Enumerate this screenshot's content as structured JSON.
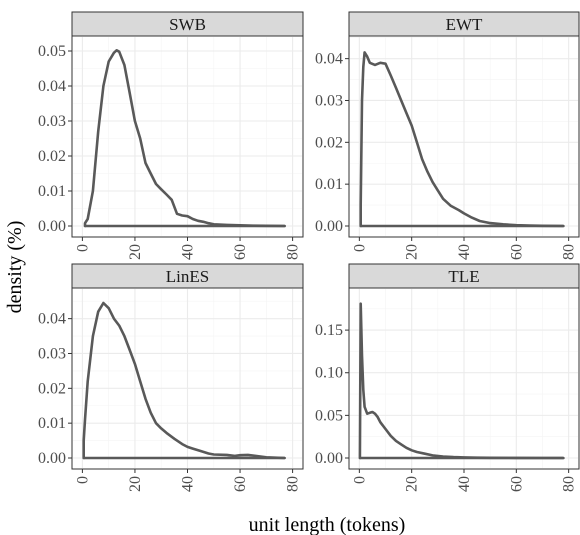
{
  "figure": {
    "ylabel": "density (%)",
    "xlabel": "unit length (tokens)"
  },
  "chart_data": [
    {
      "type": "line",
      "panel": "SWB",
      "title": "SWB",
      "xlim": [
        0,
        80
      ],
      "ylim": [
        0,
        0.052
      ],
      "x_ticks": [
        0,
        20,
        40,
        60,
        80
      ],
      "y_ticks": [
        0.0,
        0.01,
        0.02,
        0.03,
        0.04,
        0.05
      ],
      "y_tick_labels": [
        "0.00",
        "0.01",
        "0.02",
        "0.03",
        "0.04",
        "0.05"
      ],
      "series": [
        {
          "x": [
            1,
            2,
            4,
            6,
            8,
            10,
            12,
            13,
            14,
            16,
            18,
            20,
            22,
            24,
            26,
            28,
            30,
            32,
            34,
            36,
            38,
            40,
            42,
            44,
            46,
            48,
            50,
            55,
            60,
            65,
            70,
            77
          ],
          "y": [
            0.0008,
            0.002,
            0.01,
            0.027,
            0.04,
            0.047,
            0.0495,
            0.0502,
            0.0498,
            0.046,
            0.038,
            0.03,
            0.025,
            0.018,
            0.015,
            0.012,
            0.0105,
            0.009,
            0.0075,
            0.0035,
            0.003,
            0.0028,
            0.002,
            0.0015,
            0.0012,
            0.0008,
            0.0005,
            0.0003,
            0.0002,
            0.0001,
            5e-05,
            0.0
          ]
        }
      ]
    },
    {
      "type": "line",
      "panel": "EWT",
      "title": "EWT",
      "xlim": [
        0,
        80
      ],
      "ylim": [
        0,
        0.0435
      ],
      "x_ticks": [
        0,
        20,
        40,
        60,
        80
      ],
      "y_ticks": [
        0.0,
        0.01,
        0.02,
        0.03,
        0.04
      ],
      "y_tick_labels": [
        "0.00",
        "0.01",
        "0.02",
        "0.03",
        "0.04"
      ],
      "series": [
        {
          "x": [
            0.5,
            1,
            1.5,
            2,
            3,
            4,
            6,
            8,
            10,
            12,
            14,
            16,
            18,
            20,
            22,
            24,
            26,
            28,
            30,
            32,
            35,
            38,
            40,
            43,
            46,
            50,
            55,
            60,
            65,
            70,
            78
          ],
          "y": [
            0.005,
            0.03,
            0.038,
            0.0415,
            0.0405,
            0.039,
            0.0385,
            0.039,
            0.0388,
            0.036,
            0.033,
            0.03,
            0.027,
            0.024,
            0.02,
            0.016,
            0.013,
            0.0105,
            0.0085,
            0.0065,
            0.0048,
            0.0038,
            0.003,
            0.002,
            0.0012,
            0.0007,
            0.0004,
            0.0002,
            0.0001,
            5e-05,
            0.0
          ]
        }
      ]
    },
    {
      "type": "line",
      "panel": "LinES",
      "title": "LinES",
      "xlim": [
        0,
        80
      ],
      "ylim": [
        0,
        0.0465
      ],
      "x_ticks": [
        0,
        20,
        40,
        60,
        80
      ],
      "y_ticks": [
        0.0,
        0.01,
        0.02,
        0.03,
        0.04
      ],
      "y_tick_labels": [
        "0.00",
        "0.01",
        "0.02",
        "0.03",
        "0.04"
      ],
      "series": [
        {
          "x": [
            0.5,
            1,
            2,
            4,
            6,
            8,
            10,
            12,
            14,
            16,
            18,
            20,
            22,
            24,
            26,
            28,
            30,
            32,
            35,
            38,
            40,
            42,
            45,
            48,
            50,
            55,
            58,
            60,
            63,
            66,
            70,
            77
          ],
          "y": [
            0.005,
            0.011,
            0.022,
            0.035,
            0.042,
            0.0445,
            0.043,
            0.04,
            0.038,
            0.035,
            0.031,
            0.027,
            0.022,
            0.017,
            0.013,
            0.01,
            0.0085,
            0.0072,
            0.0055,
            0.004,
            0.0032,
            0.0027,
            0.002,
            0.0013,
            0.001,
            0.0009,
            0.0006,
            0.0008,
            0.0009,
            0.0006,
            0.0002,
            0.0
          ]
        }
      ]
    },
    {
      "type": "line",
      "panel": "TLE",
      "title": "TLE",
      "xlim": [
        0,
        80
      ],
      "ylim": [
        0,
        0.19
      ],
      "x_ticks": [
        0,
        20,
        40,
        60,
        80
      ],
      "y_ticks": [
        0.0,
        0.05,
        0.1,
        0.15
      ],
      "y_tick_labels": [
        "0.00",
        "0.05",
        "0.10",
        "0.15"
      ],
      "series": [
        {
          "x": [
            0.2,
            0.5,
            1,
            1.5,
            2,
            3,
            4,
            5,
            6,
            7,
            8,
            10,
            12,
            14,
            16,
            18,
            20,
            22,
            25,
            28,
            32,
            36,
            40,
            45,
            50,
            60,
            70,
            78
          ],
          "y": [
            0.0,
            0.181,
            0.12,
            0.08,
            0.06,
            0.052,
            0.053,
            0.054,
            0.052,
            0.048,
            0.042,
            0.034,
            0.026,
            0.02,
            0.016,
            0.012,
            0.009,
            0.007,
            0.005,
            0.003,
            0.0018,
            0.001,
            0.0007,
            0.0004,
            0.0002,
            0.0001,
            5e-05,
            0.0
          ]
        }
      ]
    }
  ]
}
